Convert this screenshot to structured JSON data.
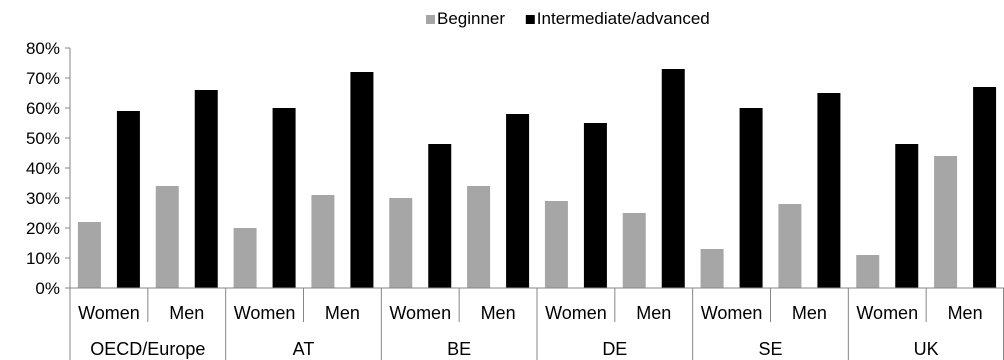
{
  "chart_data": {
    "type": "bar",
    "legend": {
      "placement": "top-center",
      "entries": [
        {
          "name": "Beginner",
          "color": "#a6a6a6"
        },
        {
          "name": "Intermediate/advanced",
          "color": "#000000"
        }
      ]
    },
    "y_axis": {
      "min": 0,
      "max": 80,
      "step": 10,
      "tick_labels": [
        "0%",
        "10%",
        "20%",
        "30%",
        "40%",
        "50%",
        "60%",
        "70%",
        "80%"
      ]
    },
    "grid": false,
    "groups": [
      {
        "label": "OECD/Europe",
        "categories": [
          "Women",
          "Men"
        ]
      },
      {
        "label": "AT",
        "categories": [
          "Women",
          "Men"
        ]
      },
      {
        "label": "BE",
        "categories": [
          "Women",
          "Men"
        ]
      },
      {
        "label": "DE",
        "categories": [
          "Women",
          "Men"
        ]
      },
      {
        "label": "SE",
        "categories": [
          "Women",
          "Men"
        ]
      },
      {
        "label": "UK",
        "categories": [
          "Women",
          "Men"
        ]
      }
    ],
    "series": [
      {
        "name": "Beginner",
        "color": "#a6a6a6",
        "values": [
          22,
          34,
          20,
          31,
          30,
          34,
          29,
          25,
          13,
          28,
          11,
          44
        ]
      },
      {
        "name": "Intermediate/advanced",
        "color": "#000000",
        "values": [
          59,
          66,
          60,
          72,
          48,
          58,
          55,
          73,
          60,
          65,
          48,
          67
        ]
      }
    ]
  }
}
